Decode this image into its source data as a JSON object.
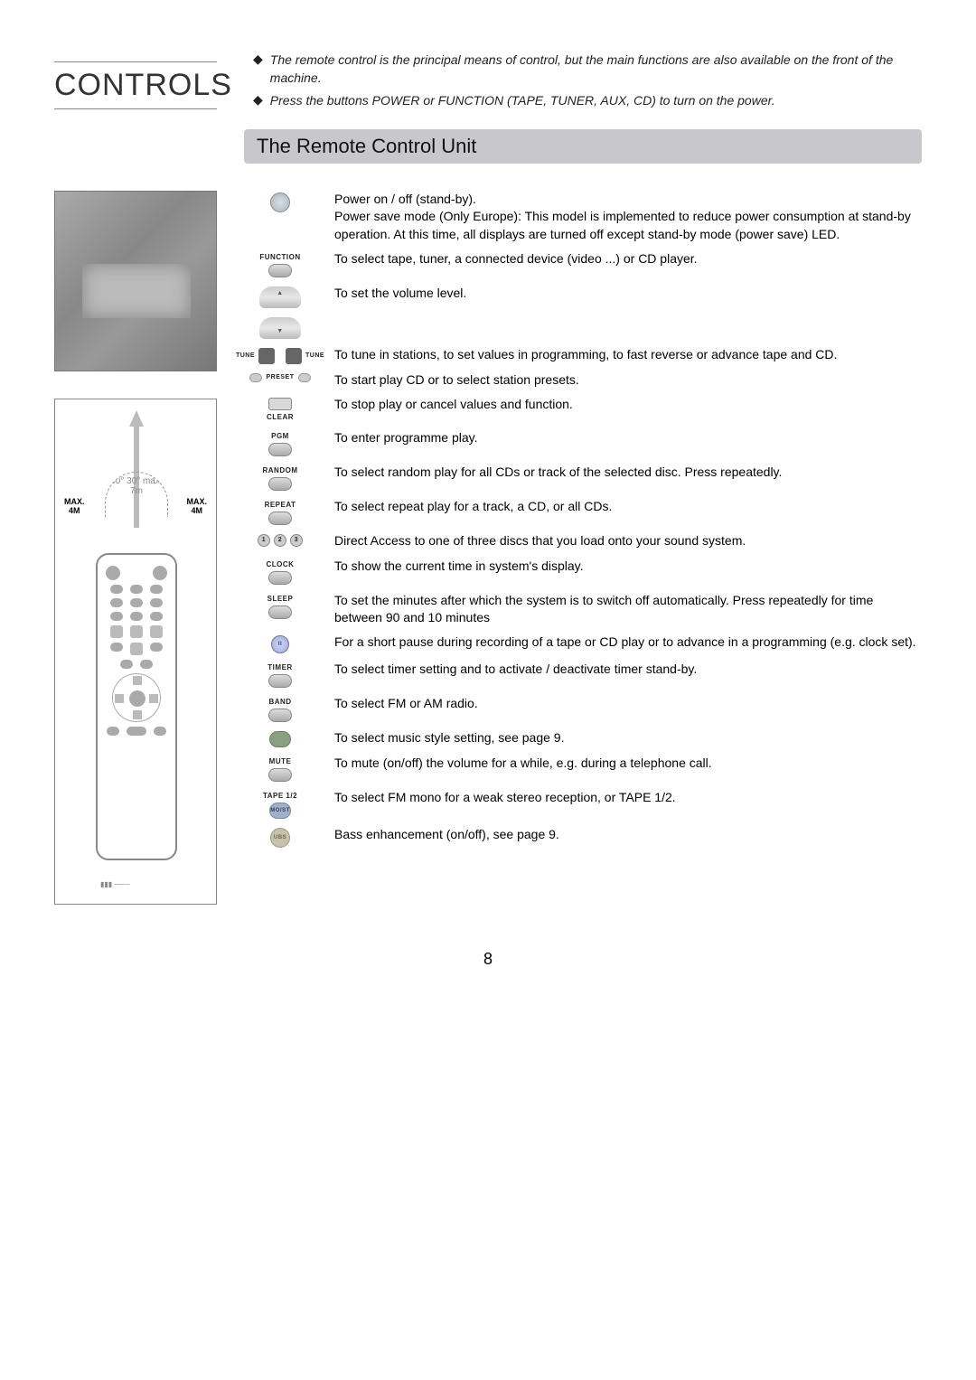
{
  "title": "CONTROLS",
  "bullets": [
    "The remote control is the principal means of control, but the main functions are also available on the front of the machine.",
    "Press the buttons POWER or FUNCTION (TAPE, TUNER, AUX, CD) to turn on the power."
  ],
  "section_heading": "The Remote Control Unit",
  "diagram": {
    "max_left": "MAX.\n4M",
    "max_right": "MAX.\n4M",
    "arc_text": "30° 30°\nmax.\n7m"
  },
  "items": [
    {
      "label_top": "",
      "glyph": "power",
      "title": "Power on / off (stand-by).",
      "desc": "Power save mode (Only Europe): This model is implemented to reduce power consumption at stand-by operation. At this time, all displays are turned off except stand-by mode (power save) LED."
    },
    {
      "label_top": "FUNCTION",
      "glyph": "oval",
      "title": "",
      "desc": "To select tape, tuner, a connected device (video ...)  or CD player."
    },
    {
      "label_top": "",
      "glyph": "volup",
      "title": "",
      "desc": "To set the volume level."
    },
    {
      "label_top": "",
      "glyph": "voldn",
      "title": "",
      "desc": ""
    },
    {
      "label_top": "",
      "glyph": "tune",
      "title": "",
      "desc": "To tune in stations, to set values in programming, to fast reverse or advance tape and CD."
    },
    {
      "label_top": "",
      "glyph": "preset",
      "title": "",
      "desc": "To start play CD or to select station presets."
    },
    {
      "label_top": "",
      "glyph": "clear",
      "label_bot": "CLEAR",
      "title": "",
      "desc": "To stop play or cancel values and function."
    },
    {
      "label_top": "PGM",
      "glyph": "oval",
      "title": "",
      "desc": "To enter programme play."
    },
    {
      "label_top": "RANDOM",
      "glyph": "oval",
      "title": "",
      "desc": "To select random play for all CDs or track of the selected disc. Press repeatedly."
    },
    {
      "label_top": "REPEAT",
      "glyph": "oval",
      "title": "",
      "desc": "To select repeat play for a track, a CD, or all CDs."
    },
    {
      "label_top": "",
      "glyph": "123",
      "title": "",
      "desc": "Direct Access to one of three discs that you load onto your sound system."
    },
    {
      "label_top": "CLOCK",
      "glyph": "oval",
      "title": "",
      "desc": "To show the current time in system's display."
    },
    {
      "label_top": "SLEEP",
      "glyph": "oval",
      "title": "",
      "desc": "To set the minutes after which the system is to switch off automatically. Press repeatedly for time between 90 and 10 minutes"
    },
    {
      "label_top": "",
      "glyph": "pause",
      "title": "",
      "desc": "For a short pause during recording of a tape or CD play or to advance in a programming (e.g. clock set)."
    },
    {
      "label_top": "TIMER",
      "glyph": "oval",
      "title": "",
      "desc": "To select timer setting and to activate / deactivate timer stand-by."
    },
    {
      "label_top": "BAND",
      "glyph": "oval",
      "title": "",
      "desc": "To select FM or AM radio."
    },
    {
      "label_top": "",
      "glyph": "green",
      "title": "",
      "desc": "To select music style setting, see page 9."
    },
    {
      "label_top": "MUTE",
      "glyph": "oval",
      "title": "",
      "desc": "To mute (on/off) the volume for a while, e.g. during a telephone call."
    },
    {
      "label_top": "TAPE 1/2",
      "glyph": "blue",
      "title": "",
      "desc": "To select FM mono for a weak stereo reception, or TAPE 1/2."
    },
    {
      "label_top": "",
      "glyph": "ubs",
      "title": "",
      "desc": "Bass enhancement (on/off), see page 9."
    }
  ],
  "page_number": "8",
  "colors": {
    "section_bar_bg": "#c8c8cc",
    "page_bg": "#ffffff",
    "text": "#000000"
  }
}
